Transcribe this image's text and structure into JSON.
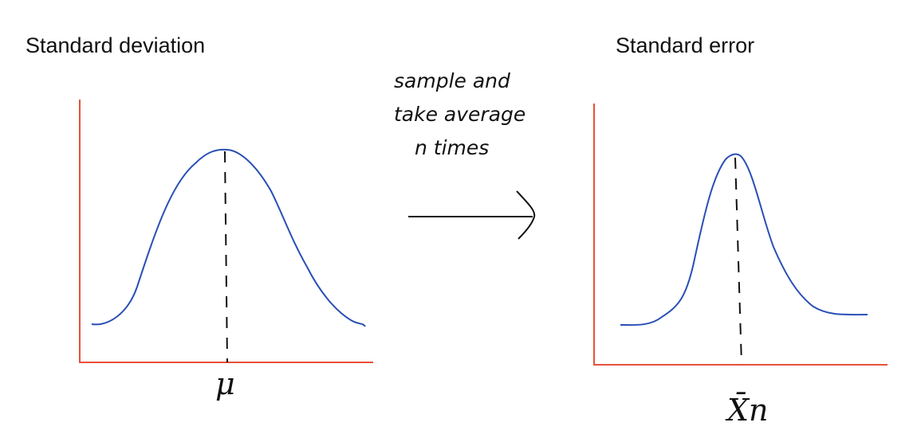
{
  "left": {
    "title": "Standard deviation",
    "label": "μ"
  },
  "arrow": {
    "lines": [
      "sample and",
      "take average",
      "n times"
    ]
  },
  "right": {
    "title": "Standard error",
    "label": "X̄n"
  }
}
